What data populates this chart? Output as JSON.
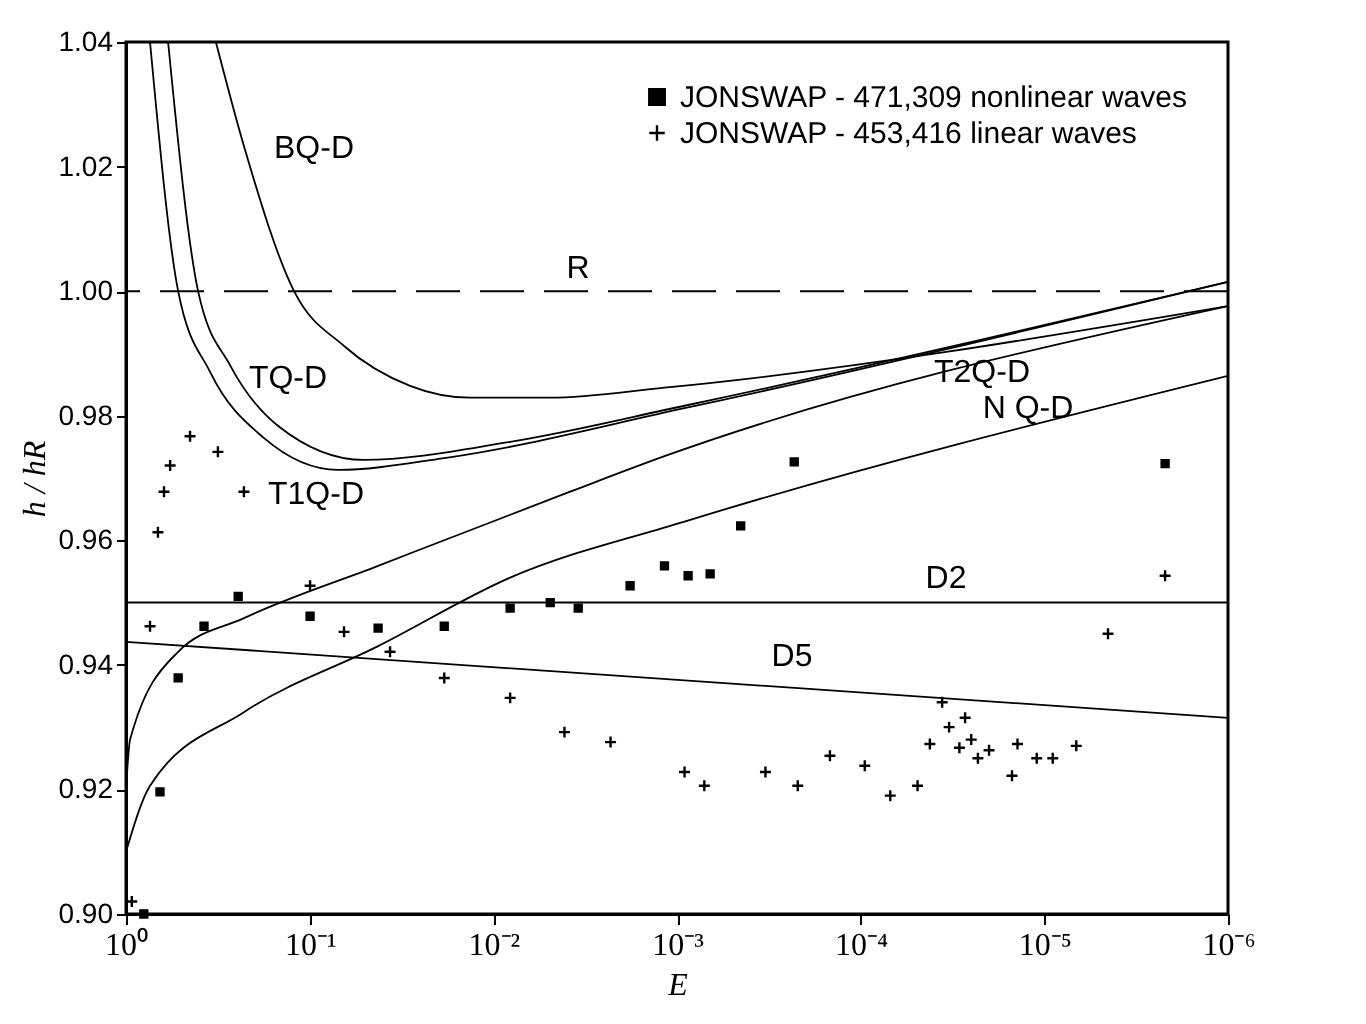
{
  "chart_data": {
    "type": "scatter",
    "xlabel": "E",
    "ylabel": "h / hR",
    "log": "x",
    "grid": false,
    "legend": "top right",
    "xlim": [
      1,
      1e-06
    ],
    "xticks": [
      {
        "value": 1,
        "label": "10⁰"
      },
      {
        "value": 0.1,
        "label": "10⁻¹"
      },
      {
        "value": 0.01,
        "label": "10⁻²"
      },
      {
        "value": 0.001,
        "label": "10⁻³"
      },
      {
        "value": 0.0001,
        "label": "10⁻⁴"
      },
      {
        "value": 1e-05,
        "label": "10⁻⁵"
      },
      {
        "value": 1e-06,
        "label": "10⁻⁶"
      }
    ],
    "ylim": [
      0.9,
      1.04
    ],
    "yticks": [
      {
        "value": 0.9,
        "label": "0.90"
      },
      {
        "value": 0.92,
        "label": "0.92"
      },
      {
        "value": 0.94,
        "label": "0.94"
      },
      {
        "value": 0.96,
        "label": "0.96"
      },
      {
        "value": 0.98,
        "label": "0.98"
      },
      {
        "value": 1.0,
        "label": "1.00"
      },
      {
        "value": 1.02,
        "label": "1.02"
      },
      {
        "value": 1.04,
        "label": "1.04"
      }
    ],
    "series": [
      {
        "name": "JONSWAP - 471,309 nonlinear waves",
        "marker": "square",
        "color": "#000000",
        "x": [
          0.8,
          0.653,
          0.52,
          0.376,
          0.245,
          0.0995,
          0.0424,
          0.0185,
          0.0081,
          0.0049,
          0.00345,
          0.0018,
          0.00117,
          0.00087,
          0.00066,
          0.00045,
          0.00023,
          2.2e-06
        ],
        "values": [
          0.9,
          0.9196,
          0.9379,
          0.9462,
          0.951,
          0.9478,
          0.9459,
          0.9462,
          0.9491,
          0.95,
          0.9491,
          0.9527,
          0.9559,
          0.9543,
          0.9546,
          0.9623,
          0.9726,
          0.9723
        ]
      },
      {
        "name": "JONSWAP - 453,416 linear waves",
        "marker": "cross",
        "color": "#000000",
        "x": [
          0.93,
          0.74,
          0.67,
          0.621,
          0.575,
          0.448,
          0.316,
          0.228,
          0.0995,
          0.065,
          0.0365,
          0.0185,
          0.0081,
          0.0041,
          0.0023,
          0.00091,
          0.00071,
          0.00033,
          0.00022,
          0.000147,
          9.5e-05,
          6.9e-05,
          4.9e-05,
          4.2e-05,
          3.6e-05,
          3.3e-05,
          2.9e-05,
          2.7e-05,
          2.5e-05,
          2.3e-05,
          2e-05,
          1.5e-05,
          1.4e-05,
          1.1e-05,
          9e-06,
          6.7e-06,
          4.5e-06,
          2.2e-06
        ],
        "values": [
          0.902,
          0.9462,
          0.9613,
          0.9678,
          0.972,
          0.9767,
          0.9742,
          0.9678,
          0.9527,
          0.9453,
          0.9421,
          0.9379,
          0.9347,
          0.9292,
          0.9276,
          0.9228,
          0.9206,
          0.9228,
          0.9206,
          0.9254,
          0.9238,
          0.919,
          0.9206,
          0.9273,
          0.934,
          0.93,
          0.9267,
          0.9315,
          0.928,
          0.925,
          0.9263,
          0.9222,
          0.9273,
          0.925,
          0.925,
          0.927,
          0.945,
          0.9543
        ]
      },
      {
        "name": "BQ-D",
        "type": "line",
        "color": "#000000",
        "x": [
          0.324,
          0.228,
          0.1216,
          0.065,
          0.0284,
          0.0134,
          0.0049,
          0.00117,
          1e-06
        ],
        "values": [
          1.04,
          1.0233,
          1.0,
          0.9912,
          0.9848,
          0.9829,
          0.9829,
          0.9845,
          0.9976
        ]
      },
      {
        "name": "TQ-D",
        "type": "line",
        "color": "#000000",
        "x": [
          0.59,
          0.405,
          0.27,
          0.149,
          0.0506,
          0.0081,
          0.00091,
          1e-06
        ],
        "values": [
          1.04,
          1.0,
          0.988,
          0.9784,
          0.9729,
          0.9758,
          0.9816,
          1.0015
        ]
      },
      {
        "name": "T1Q-D",
        "type": "line",
        "color": "#000000",
        "x": [
          0.74,
          0.52,
          0.348,
          0.177,
          0.07,
          0.0185,
          0.00091,
          1e-06
        ],
        "values": [
          1.04,
          1.0,
          0.987,
          0.9764,
          0.9713,
          0.9732,
          0.9812,
          1.0015
        ]
      },
      {
        "name": "T2Q-D",
        "type": "line",
        "color": "#000000",
        "x": [
          1,
          0.95,
          0.52,
          0.228,
          0.0424,
          0.00382,
          0.00117,
          1e-06
        ],
        "values": [
          0.92,
          0.928,
          0.9421,
          0.9475,
          0.9559,
          0.9678,
          0.9735,
          0.9976
        ]
      },
      {
        "name": "N Q-D",
        "type": "line",
        "color": "#000000",
        "x": [
          1,
          0.74,
          0.228,
          0.0424,
          0.0081,
          0.00091,
          1e-06
        ],
        "values": [
          0.91,
          0.9206,
          0.9324,
          0.943,
          0.954,
          0.963,
          0.9864
        ]
      },
      {
        "name": "D5",
        "type": "line",
        "color": "#000000",
        "x": [
          1,
          1e-06
        ],
        "values": [
          0.9437,
          0.9315
        ]
      }
    ],
    "ref_lines": [
      {
        "axis": "y",
        "value": 1.0,
        "label": "R",
        "line_style": "dashed",
        "color": "#000000"
      },
      {
        "axis": "y",
        "value": 0.95,
        "label": "D2",
        "line_style": "solid",
        "color": "#000000"
      }
    ]
  }
}
